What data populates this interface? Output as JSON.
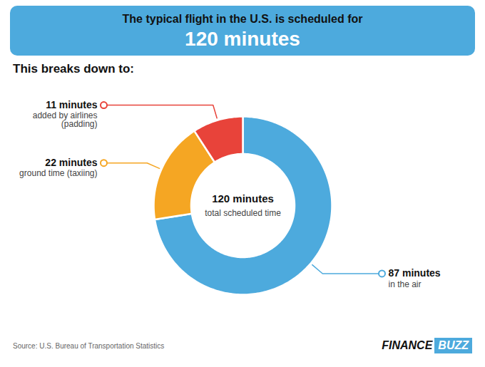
{
  "chart_data": {
    "type": "donut",
    "title": "The typical flight in the U.S. is scheduled for",
    "subtitle": "120 minutes",
    "values": [
      87,
      22,
      11
    ],
    "value_labels": [
      "87 minutes",
      "22 minutes",
      "11 minutes"
    ],
    "categories": [
      "in the air",
      "ground time (taxiing)",
      "added by airlines\n(padding)"
    ],
    "colors": [
      "#4DAADD",
      "#F5A623",
      "#E8433A"
    ],
    "data_labels": true,
    "annotations": [
      "This breaks down to:",
      "120 minutes",
      "total scheduled time",
      "Source: U.S. Bureau of Transportation Statistics",
      "FINANCE",
      "BUZZ"
    ]
  }
}
